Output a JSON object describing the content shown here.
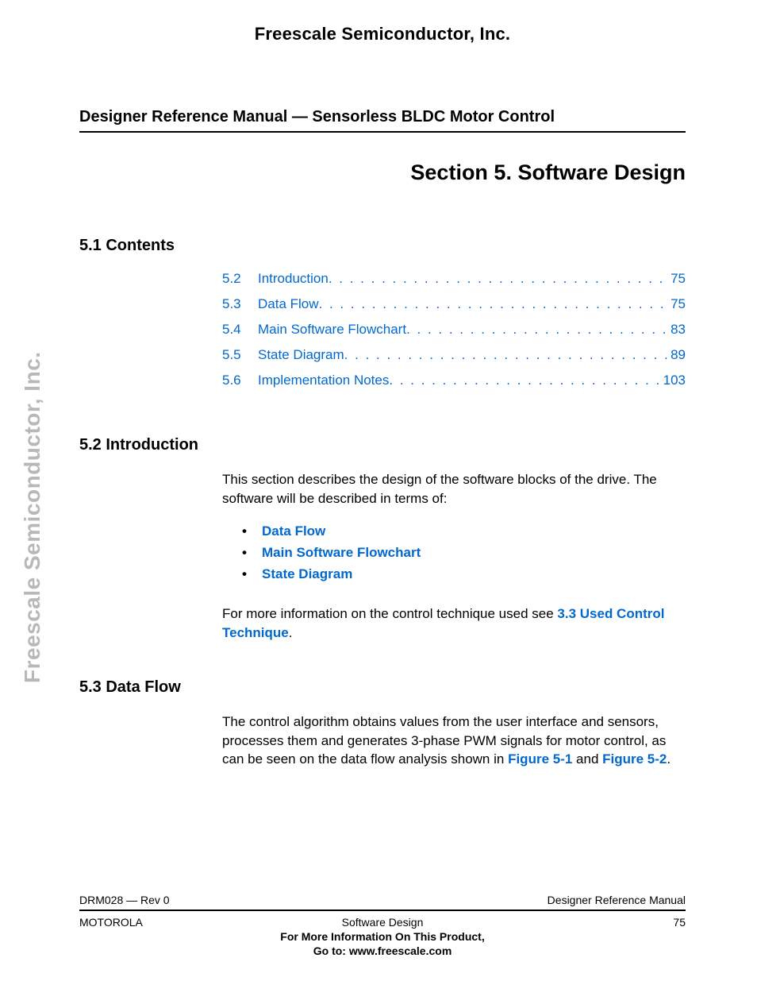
{
  "header": {
    "company": "Freescale Semiconductor, Inc.",
    "side_text": "Freescale Semiconductor, Inc.",
    "manual_title": "Designer Reference Manual — Sensorless BLDC Motor Control",
    "section_title": "Section 5. Software Design"
  },
  "toc": {
    "heading": "5.1  Contents",
    "items": [
      {
        "num": "5.2",
        "label": "Introduction",
        "page": "75"
      },
      {
        "num": "5.3",
        "label": "Data Flow",
        "page": "75"
      },
      {
        "num": "5.4",
        "label": "Main Software Flowchart",
        "page": "83"
      },
      {
        "num": "5.5",
        "label": "State Diagram",
        "page": "89"
      },
      {
        "num": "5.6",
        "label": "Implementation Notes",
        "page": "103"
      }
    ],
    "link_color": "#0068cf"
  },
  "intro": {
    "heading": "5.2  Introduction",
    "para1": "This section describes the design of the software blocks of the drive. The software will be described in terms of:",
    "bullets": [
      "Data Flow",
      "Main Software Flowchart",
      "State Diagram"
    ],
    "para2_pre": "For more information on the control technique used see ",
    "para2_link": "3.3 Used Control Technique",
    "para2_post": "."
  },
  "dataflow": {
    "heading": "5.3  Data Flow",
    "para_pre": "The control algorithm obtains values from the user interface and sensors, processes them and generates 3-phase PWM signals for motor control, as can be seen on the data flow analysis shown in ",
    "link1": "Figure 5-1",
    "mid": " and ",
    "link2": "Figure 5-2",
    "post": "."
  },
  "footer": {
    "doc_id": "DRM028 — Rev 0",
    "right_label": "Designer Reference Manual",
    "brand": "MOTOROLA",
    "center": "Software Design",
    "page": "75",
    "bold1": "For More Information On This Product,",
    "bold2": "Go to: www.freescale.com"
  },
  "style": {
    "text_color": "#000000",
    "link_color": "#0068cf",
    "side_text_color": "#b8b8b8",
    "background": "#ffffff",
    "body_fontsize": 17,
    "heading_fontsize": 20,
    "section_title_fontsize": 27,
    "footer_fontsize": 14
  }
}
